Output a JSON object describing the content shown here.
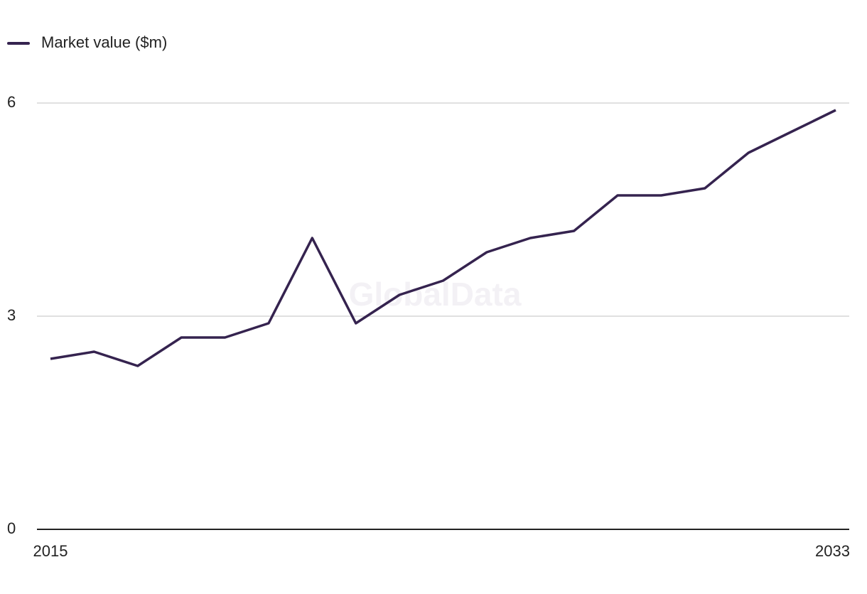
{
  "chart_data": {
    "type": "line",
    "watermark": "GlobalData",
    "x": [
      2015,
      2016,
      2017,
      2018,
      2019,
      2020,
      2021,
      2022,
      2023,
      2024,
      2025,
      2026,
      2027,
      2028,
      2029,
      2030,
      2031,
      2032,
      2033
    ],
    "series": [
      {
        "name": "Market value ($m)",
        "color": "#35234f",
        "values": [
          2.4,
          2.5,
          2.3,
          2.7,
          2.7,
          2.9,
          4.1,
          2.9,
          3.3,
          3.5,
          3.9,
          4.1,
          4.2,
          4.7,
          4.7,
          4.8,
          5.3,
          5.6,
          5.9
        ]
      }
    ],
    "xlim": [
      2015,
      2033
    ],
    "xticks": [
      2015,
      2033
    ],
    "ylim": [
      0,
      6
    ],
    "yticks": [
      0,
      3,
      6
    ],
    "grid": true,
    "legend": "top-left"
  }
}
